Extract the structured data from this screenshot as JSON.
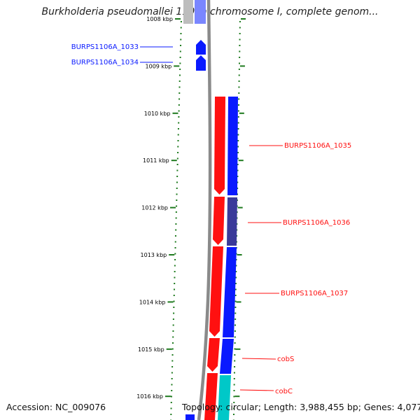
{
  "title": "Burkholderia pseudomallei 1106a chromosome I, complete genom...",
  "accession": "Accession: NC_009076",
  "topology": "Topology: circular; Length: 3,988,455 bp; Genes: 4,077",
  "ticks": [
    {
      "label": "1008 kbp",
      "kbp": 1008
    },
    {
      "label": "1009 kbp",
      "kbp": 1009
    },
    {
      "label": "1010 kbp",
      "kbp": 1010
    },
    {
      "label": "1011 kbp",
      "kbp": 1011
    },
    {
      "label": "1012 kbp",
      "kbp": 1012
    },
    {
      "label": "1013 kbp",
      "kbp": 1013
    },
    {
      "label": "1014 kbp",
      "kbp": 1014
    },
    {
      "label": "1015 kbp",
      "kbp": 1015
    },
    {
      "label": "1016 kbp",
      "kbp": 1016
    }
  ],
  "colors": {
    "blue": "#0a1aff",
    "red": "#ff1010",
    "navy": "#3a3a9a",
    "cyan": "#00c8c8",
    "gray": "#8a8a8a",
    "green": "#1e7a1e",
    "blue_label": "#0000c0",
    "red_label": "#cc0000"
  },
  "genes": [
    {
      "name": "BURPS1106A_1033",
      "label_color": "blue"
    },
    {
      "name": "BURPS1106A_1034",
      "label_color": "blue"
    },
    {
      "name": "BURPS1106A_1035",
      "label_color": "red"
    },
    {
      "name": "BURPS1106A_1036",
      "label_color": "red"
    },
    {
      "name": "BURPS1106A_1037",
      "label_color": "red"
    },
    {
      "name": "cobS",
      "label_color": "red"
    },
    {
      "name": "cobC",
      "label_color": "red"
    }
  ]
}
